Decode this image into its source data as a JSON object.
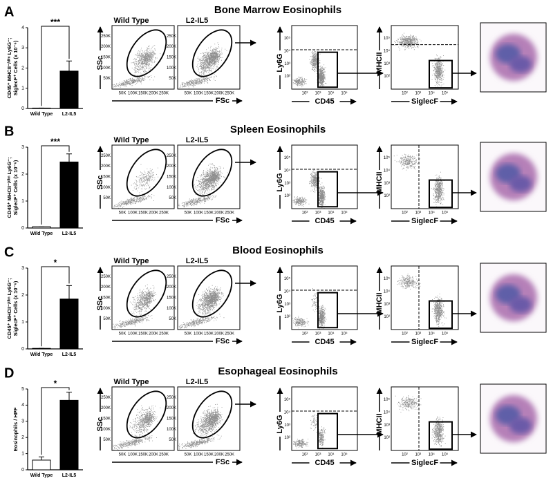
{
  "panels": [
    {
      "letter": "A",
      "title": "Bone Marrow Eosinophils",
      "flow_titles": [
        "Wild Type",
        "L2-IL5"
      ]
    },
    {
      "letter": "B",
      "title": "Spleen Eosinophils",
      "flow_titles": [
        "Wild Type",
        "L2-IL5"
      ]
    },
    {
      "letter": "C",
      "title": "Blood Eosinophils",
      "flow_titles": [
        "Wild Type",
        "L2-IL5"
      ]
    },
    {
      "letter": "D",
      "title": "Esophageal Eosinophils",
      "flow_titles": [
        "Wild Type",
        "L2-IL5"
      ]
    }
  ],
  "flow_axes": {
    "ssc": "SSc",
    "fsc": "FSc",
    "scatter_ticks": [
      "50K",
      "100K",
      "150K",
      "200K",
      "250K"
    ],
    "ly6g": "Ly6G",
    "cd45": "CD45",
    "mhcii": "MHCII",
    "siglecf": "SiglecF",
    "log_ticks": [
      "10²",
      "10³",
      "10⁴",
      "10⁵"
    ]
  },
  "chart_data": [
    {
      "type": "bar",
      "categories": [
        "Wild Type",
        "L2-IL5"
      ],
      "values": [
        0.02,
        1.85
      ],
      "errors": [
        0,
        0.5
      ],
      "colors": [
        "#ffffff",
        "#000000"
      ],
      "ylim": [
        0,
        4
      ],
      "yticks": [
        0,
        1,
        2,
        3,
        4
      ],
      "y_label": [
        "CD45⁺ MHCII⁻/ᵈⁱᵐ Ly6G⁻;",
        "SiglecF⁺ Cells (x 10⁻⁶)"
      ],
      "significance": "***"
    },
    {
      "type": "bar",
      "categories": [
        "Wild Type",
        "L2-IL5"
      ],
      "values": [
        0.05,
        2.45
      ],
      "errors": [
        0,
        0.3
      ],
      "colors": [
        "#ffffff",
        "#000000"
      ],
      "ylim": [
        0,
        3
      ],
      "yticks": [
        0,
        1,
        2,
        3
      ],
      "y_label": [
        "CD45⁺ MHCII⁻/ᵈⁱᵐ Ly6G⁻;",
        "SiglecF⁺ Cells (x 10⁻⁶)"
      ],
      "significance": "***"
    },
    {
      "type": "bar",
      "categories": [
        "Wild Type",
        "L2-IL5"
      ],
      "values": [
        0.02,
        1.85
      ],
      "errors": [
        0,
        0.5
      ],
      "colors": [
        "#ffffff",
        "#000000"
      ],
      "ylim": [
        0,
        3
      ],
      "yticks": [
        0,
        1,
        2,
        3
      ],
      "y_label": [
        "CD45⁺ MHCII⁻/ᵈⁱᵐ Ly6G⁻;",
        "SiglecF⁺ Cells (x 10⁻⁶)"
      ],
      "significance": "*"
    },
    {
      "type": "bar",
      "categories": [
        "Wild Type",
        "L2-IL5"
      ],
      "values": [
        0.6,
        4.3
      ],
      "errors": [
        0.2,
        0.5
      ],
      "colors": [
        "#ffffff",
        "#000000"
      ],
      "ylim": [
        0,
        5
      ],
      "yticks": [
        0,
        1,
        2,
        3,
        4,
        5
      ],
      "y_label": [
        "Eosinophils / HPF"
      ],
      "significance": "*"
    }
  ]
}
